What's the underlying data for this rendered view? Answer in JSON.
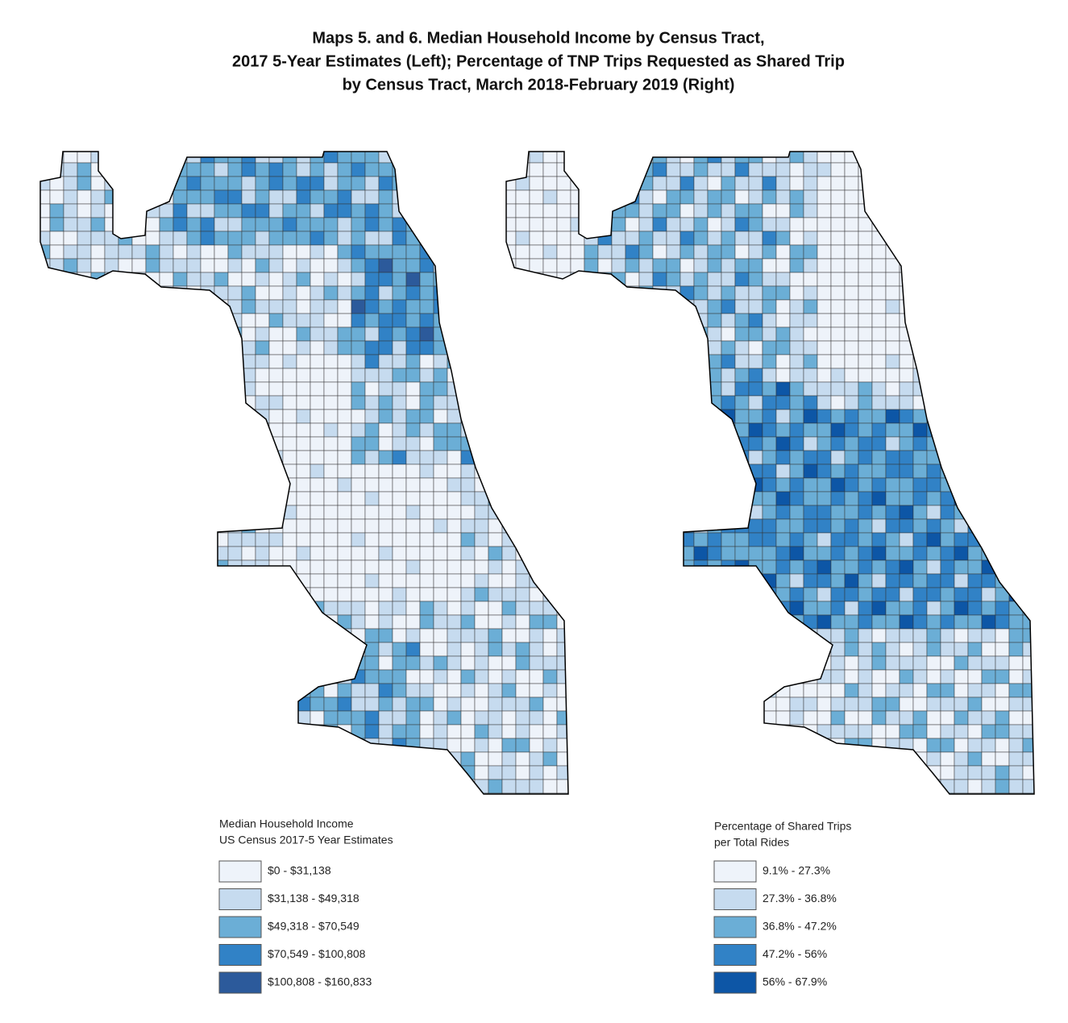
{
  "title": [
    "Maps 5. and 6. Median Household Income by Census Tract,",
    "2017 5-Year Estimates (Left); Percentage of TNP Trips Requested as Shared Trip",
    "by Census Tract, March 2018-February 2019 (Right)"
  ],
  "maps": [
    {
      "legend": {
        "title": [
          "Median Household Income",
          "US Census 2017-5 Year Estimates"
        ],
        "items": [
          {
            "label": "$0 - $31,138",
            "color": "#eef3fa"
          },
          {
            "label": "$31,138 - $49,318",
            "color": "#c6dbef"
          },
          {
            "label": "$49,318 - $70,549",
            "color": "#6baed6"
          },
          {
            "label": "$70,549 - $100,808",
            "color": "#3182c6"
          },
          {
            "label": "$100,808 - $160,833",
            "color": "#2c5a9b"
          }
        ]
      }
    },
    {
      "legend": {
        "title": [
          "Percentage of Shared Trips",
          "per Total Rides"
        ],
        "items": [
          {
            "label": "9.1% - 27.3%",
            "color": "#eef3fa"
          },
          {
            "label": "27.3% - 36.8%",
            "color": "#c6dbef"
          },
          {
            "label": "36.8% - 47.2%",
            "color": "#6baed6"
          },
          {
            "label": "47.2% - 56%",
            "color": "#3182c6"
          },
          {
            "label": "56% - 67.9%",
            "color": "#0d56a6"
          }
        ]
      }
    }
  ]
}
